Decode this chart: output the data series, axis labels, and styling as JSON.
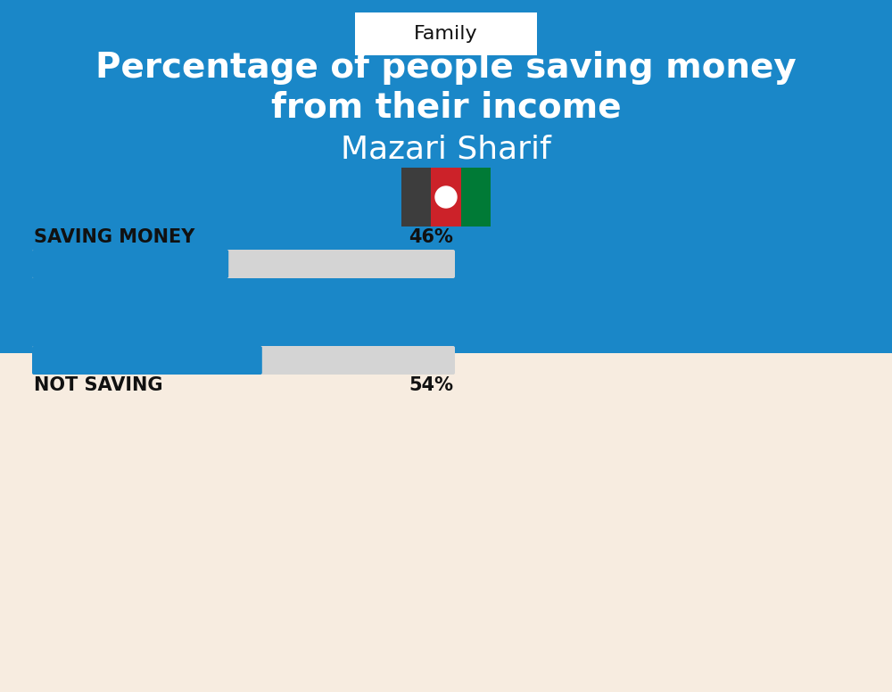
{
  "title_line1": "Percentage of people saving money",
  "title_line2": "from their income",
  "subtitle": "Mazari Sharif",
  "tag": "Family",
  "saving_label": "SAVING MONEY",
  "saving_value": 46,
  "saving_pct_label": "46%",
  "not_saving_label": "NOT SAVING",
  "not_saving_value": 54,
  "not_saving_pct_label": "54%",
  "bar_blue": "#1a87c8",
  "bar_gray": "#d4d4d4",
  "bg_cream": "#f7ece0",
  "bg_blue": "#1a87c8",
  "white": "#ffffff",
  "black": "#111111",
  "flag_black": "#3d3d3d",
  "flag_red": "#cc2229",
  "flag_green": "#007a36"
}
